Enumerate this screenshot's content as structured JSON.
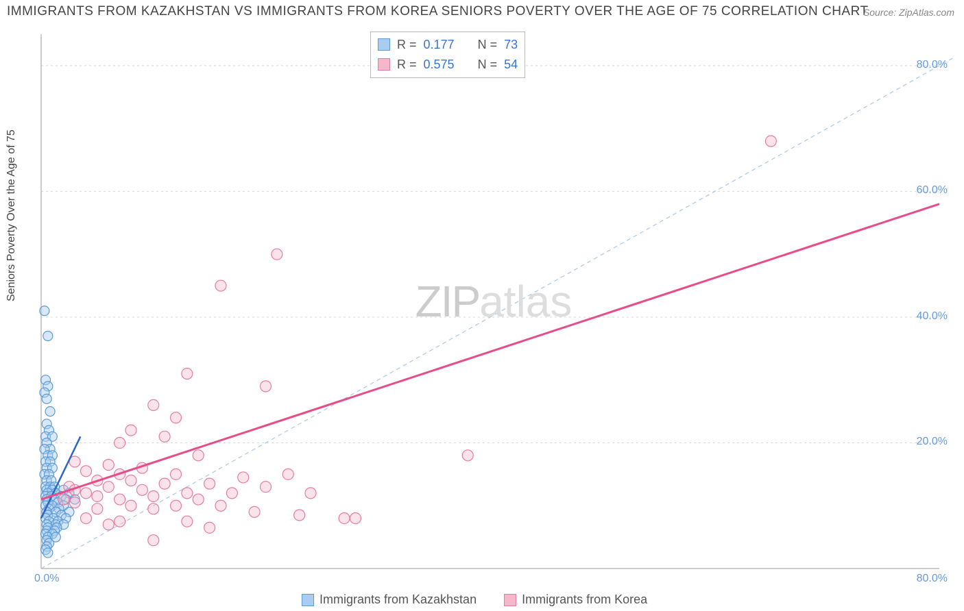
{
  "title": "IMMIGRANTS FROM KAZAKHSTAN VS IMMIGRANTS FROM KOREA SENIORS POVERTY OVER THE AGE OF 75 CORRELATION CHART",
  "source": "Source: ZipAtlas.com",
  "y_axis_label": "Seniors Poverty Over the Age of 75",
  "watermark_zip": "ZIP",
  "watermark_atlas": "atlas",
  "chart": {
    "type": "scatter",
    "xlim": [
      0,
      80
    ],
    "ylim": [
      0,
      85
    ],
    "x_ticks": [
      {
        "v": 0,
        "label": "0.0%"
      },
      {
        "v": 80,
        "label": "80.0%"
      }
    ],
    "y_ticks": [
      {
        "v": 20,
        "label": "20.0%"
      },
      {
        "v": 40,
        "label": "40.0%"
      },
      {
        "v": 60,
        "label": "60.0%"
      },
      {
        "v": 80,
        "label": "80.0%"
      }
    ],
    "grid_color": "#d8d8d8",
    "axis_color": "#bbbbbb",
    "background_color": "#ffffff",
    "diagonal_line": {
      "color": "#a8c8e8",
      "dash": "6,5",
      "width": 1.2,
      "from": [
        0,
        0
      ],
      "to": [
        85,
        85
      ]
    },
    "series": [
      {
        "name": "Immigrants from Kazakhstan",
        "fill": "#a8cdf0",
        "stroke": "#5b9bd5",
        "fill_opacity": 0.45,
        "marker_radius": 7,
        "R": "0.177",
        "N": "73",
        "trend": {
          "from": [
            0,
            8
          ],
          "to": [
            3.5,
            21
          ],
          "color": "#2d66c4",
          "width": 2.5
        },
        "points": [
          [
            0.3,
            41
          ],
          [
            0.6,
            37
          ],
          [
            0.4,
            30
          ],
          [
            0.6,
            29
          ],
          [
            0.3,
            28
          ],
          [
            0.5,
            27
          ],
          [
            0.8,
            25
          ],
          [
            0.5,
            23
          ],
          [
            0.7,
            22
          ],
          [
            0.4,
            21
          ],
          [
            1.0,
            21
          ],
          [
            0.5,
            20
          ],
          [
            0.8,
            19
          ],
          [
            0.3,
            19
          ],
          [
            0.6,
            18
          ],
          [
            1.0,
            18
          ],
          [
            0.4,
            17
          ],
          [
            0.8,
            17
          ],
          [
            0.5,
            16
          ],
          [
            1.0,
            16
          ],
          [
            0.3,
            15
          ],
          [
            0.7,
            15
          ],
          [
            0.5,
            14
          ],
          [
            0.9,
            14
          ],
          [
            0.4,
            13
          ],
          [
            0.8,
            13
          ],
          [
            1.2,
            13
          ],
          [
            0.5,
            12.5
          ],
          [
            1.0,
            12.5
          ],
          [
            2.0,
            12.5
          ],
          [
            0.6,
            12
          ],
          [
            1.3,
            12
          ],
          [
            2.5,
            12
          ],
          [
            0.4,
            11.5
          ],
          [
            0.9,
            11.5
          ],
          [
            1.8,
            11.5
          ],
          [
            0.5,
            11
          ],
          [
            1.2,
            11
          ],
          [
            2.2,
            11
          ],
          [
            3.0,
            11
          ],
          [
            0.6,
            10.5
          ],
          [
            1.5,
            10.5
          ],
          [
            0.4,
            10
          ],
          [
            1.0,
            10
          ],
          [
            2.0,
            10
          ],
          [
            0.7,
            9.5
          ],
          [
            1.6,
            9.5
          ],
          [
            0.5,
            9
          ],
          [
            1.3,
            9
          ],
          [
            2.5,
            9
          ],
          [
            0.6,
            8.5
          ],
          [
            1.8,
            8.5
          ],
          [
            0.4,
            8
          ],
          [
            1.1,
            8
          ],
          [
            2.2,
            8
          ],
          [
            0.7,
            7.5
          ],
          [
            1.5,
            7.5
          ],
          [
            0.5,
            7
          ],
          [
            1.3,
            7
          ],
          [
            2.0,
            7
          ],
          [
            0.6,
            6.5
          ],
          [
            1.4,
            6.5
          ],
          [
            0.5,
            6
          ],
          [
            1.2,
            6
          ],
          [
            0.4,
            5.5
          ],
          [
            1.0,
            5.5
          ],
          [
            0.6,
            5
          ],
          [
            1.3,
            5
          ],
          [
            0.5,
            4.5
          ],
          [
            0.7,
            4
          ],
          [
            0.5,
            3.5
          ],
          [
            0.4,
            3
          ],
          [
            0.6,
            2.5
          ]
        ]
      },
      {
        "name": "Immigrants from Korea",
        "fill": "#f5b8cb",
        "stroke": "#e87ba3",
        "fill_opacity": 0.4,
        "marker_radius": 8,
        "R": "0.575",
        "N": "54",
        "trend": {
          "from": [
            0,
            11
          ],
          "to": [
            80,
            58
          ],
          "color": "#e84d8a",
          "width": 3
        },
        "points": [
          [
            65,
            68
          ],
          [
            21,
            50
          ],
          [
            16,
            45
          ],
          [
            13,
            31
          ],
          [
            20,
            29
          ],
          [
            10,
            26
          ],
          [
            12,
            24
          ],
          [
            8,
            22
          ],
          [
            11,
            21
          ],
          [
            7,
            20
          ],
          [
            14,
            18
          ],
          [
            38,
            18
          ],
          [
            3,
            17
          ],
          [
            6,
            16.5
          ],
          [
            9,
            16
          ],
          [
            4,
            15.5
          ],
          [
            7,
            15
          ],
          [
            12,
            15
          ],
          [
            22,
            15
          ],
          [
            18,
            14.5
          ],
          [
            5,
            14
          ],
          [
            8,
            14
          ],
          [
            11,
            13.5
          ],
          [
            15,
            13.5
          ],
          [
            2.5,
            13
          ],
          [
            6,
            13
          ],
          [
            20,
            13
          ],
          [
            3,
            12.5
          ],
          [
            9,
            12.5
          ],
          [
            13,
            12
          ],
          [
            4,
            12
          ],
          [
            17,
            12
          ],
          [
            24,
            12
          ],
          [
            5,
            11.5
          ],
          [
            10,
            11.5
          ],
          [
            2,
            11
          ],
          [
            7,
            11
          ],
          [
            14,
            11
          ],
          [
            3,
            10.5
          ],
          [
            8,
            10
          ],
          [
            12,
            10
          ],
          [
            16,
            10
          ],
          [
            5,
            9.5
          ],
          [
            10,
            9.5
          ],
          [
            19,
            9
          ],
          [
            23,
            8.5
          ],
          [
            28,
            8
          ],
          [
            4,
            8
          ],
          [
            7,
            7.5
          ],
          [
            13,
            7.5
          ],
          [
            6,
            7
          ],
          [
            15,
            6.5
          ],
          [
            10,
            4.5
          ],
          [
            27,
            8
          ]
        ]
      }
    ]
  },
  "stats_box": {
    "rows": [
      {
        "swatch_fill": "#a8cdf0",
        "swatch_stroke": "#5b9bd5",
        "r_label": "R =",
        "r_val": "0.177",
        "n_label": "N =",
        "n_val": "73"
      },
      {
        "swatch_fill": "#f5b8cb",
        "swatch_stroke": "#e87ba3",
        "r_label": "R =",
        "r_val": "0.575",
        "n_label": "N =",
        "n_val": "54"
      }
    ]
  },
  "bottom_legend": [
    {
      "swatch_fill": "#a8cdf0",
      "swatch_stroke": "#5b9bd5",
      "label": "Immigrants from Kazakhstan"
    },
    {
      "swatch_fill": "#f5b8cb",
      "swatch_stroke": "#e87ba3",
      "label": "Immigrants from Korea"
    }
  ]
}
